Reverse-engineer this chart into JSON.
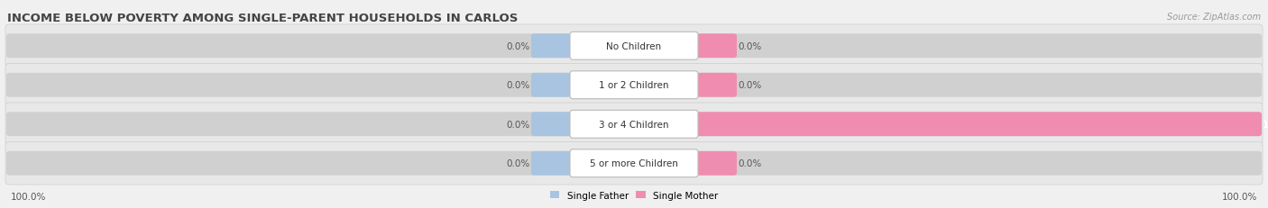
{
  "title": "INCOME BELOW POVERTY AMONG SINGLE-PARENT HOUSEHOLDS IN CARLOS",
  "source": "Source: ZipAtlas.com",
  "categories": [
    "No Children",
    "1 or 2 Children",
    "3 or 4 Children",
    "5 or more Children"
  ],
  "single_father": [
    0.0,
    0.0,
    0.0,
    0.0
  ],
  "single_mother": [
    0.0,
    0.0,
    100.0,
    0.0
  ],
  "father_color": "#a8c4e0",
  "mother_color": "#f08cb0",
  "row_bg_color": "#e8e8e8",
  "fig_bg_color": "#f0f0f0",
  "title_fontsize": 9.5,
  "label_fontsize": 7.5,
  "source_fontsize": 7,
  "left_axis_label": "100.0%",
  "right_axis_label": "100.0%"
}
